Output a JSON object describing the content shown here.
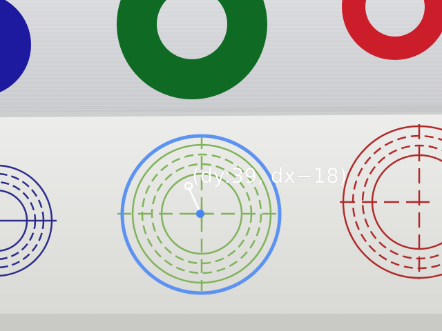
{
  "scene": {
    "overlay_text": "(dy:39, dx−18)",
    "colors": {
      "detection_circle": "#5c93f2",
      "center_marker": "#4a86ee",
      "guide_line": "#ffffff",
      "green_target": "#7fb35a",
      "red_target": "#b02a2a",
      "blue_target": "#2d2d8c",
      "green_ring": "#0f6a24",
      "red_ring": "#cc1d2a",
      "blue_disc": "#1d1aa0",
      "mat_lower": "#e3e3df",
      "mat_upper": "#d0d1d4"
    }
  }
}
